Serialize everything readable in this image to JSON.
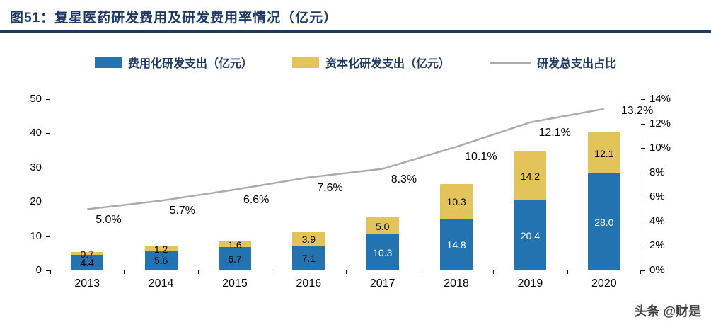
{
  "header": {
    "title": "图51：复星医药研发费用及研发费用率情况（亿元）"
  },
  "legend": [
    {
      "label": "费用化研发支出（亿元）",
      "type": "bar",
      "color": "#2273B0"
    },
    {
      "label": "资本化研发支出（亿元）",
      "type": "bar",
      "color": "#E2C45A"
    },
    {
      "label": "研发总支出占比",
      "type": "line",
      "color": "#ABABAB"
    }
  ],
  "chart_data": {
    "type": "bar",
    "subtype": "stacked-bar-with-line",
    "title": "复星医药研发费用及研发费用率情况（亿元）",
    "categories": [
      "2013",
      "2014",
      "2015",
      "2016",
      "2017",
      "2018",
      "2019",
      "2020"
    ],
    "series": [
      {
        "name": "费用化研发支出（亿元）",
        "type": "bar",
        "axis": "left",
        "color": "#2273B0",
        "values": [
          4.4,
          5.6,
          6.7,
          7.1,
          10.3,
          14.8,
          20.4,
          28.0
        ]
      },
      {
        "name": "资本化研发支出（亿元）",
        "type": "bar",
        "axis": "left",
        "color": "#E2C45A",
        "values": [
          0.7,
          1.2,
          1.6,
          3.9,
          5.0,
          10.3,
          14.2,
          12.1
        ]
      },
      {
        "name": "研发总支出占比",
        "type": "line",
        "axis": "right",
        "color": "#ABABAB",
        "unit": "%",
        "values": [
          5.0,
          5.7,
          6.6,
          7.6,
          8.3,
          10.1,
          12.1,
          13.2
        ]
      }
    ],
    "left_axis": {
      "min": 0,
      "max": 50,
      "step": 10
    },
    "right_axis": {
      "min": 0,
      "max": 14,
      "step": 2,
      "suffix": "%"
    },
    "grid": false,
    "legend_position": "top"
  },
  "watermark": "头条 @财是",
  "colors": {
    "title": "#1F3864",
    "bar_blue": "#2273B0",
    "bar_yellow": "#E2C45A",
    "line_gray": "#ABABAB"
  }
}
